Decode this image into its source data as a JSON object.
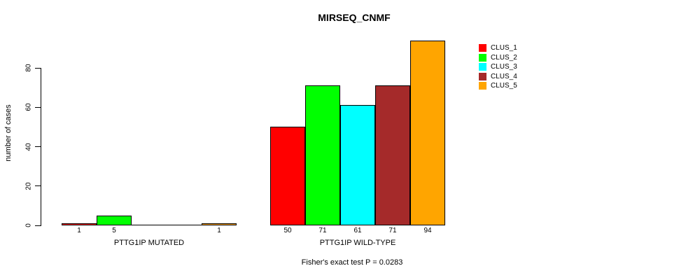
{
  "chart_data": {
    "type": "bar",
    "title": "MIRSEQ_CNMF",
    "ylabel": "number of cases",
    "xlabel": "",
    "ylim": [
      0,
      94
    ],
    "yticks": [
      0,
      20,
      40,
      60,
      80
    ],
    "ytick_labels": [
      "0",
      "20",
      "40",
      "60",
      "80"
    ],
    "categories": [
      "PTTG1IP MUTATED",
      "PTTG1IP WILD-TYPE"
    ],
    "series": [
      {
        "name": "CLUS_1",
        "color": "#FF0000",
        "values": [
          1,
          50
        ]
      },
      {
        "name": "CLUS_2",
        "color": "#00FF00",
        "values": [
          5,
          71
        ]
      },
      {
        "name": "CLUS_3",
        "color": "#00FFFF",
        "values": [
          0,
          61
        ]
      },
      {
        "name": "CLUS_4",
        "color": "#A52A2A",
        "values": [
          0,
          71
        ]
      },
      {
        "name": "CLUS_5",
        "color": "#FFA500",
        "values": [
          1,
          94
        ]
      }
    ],
    "bar_labels": [
      [
        "1",
        "5",
        "",
        "",
        "1"
      ],
      [
        "50",
        "71",
        "61",
        "71",
        "94"
      ]
    ],
    "annotation": "Fisher's exact test P = 0.0283",
    "legend_position": "right",
    "grid": false,
    "axis_color": "#000000",
    "background": "#FFFFFF"
  }
}
